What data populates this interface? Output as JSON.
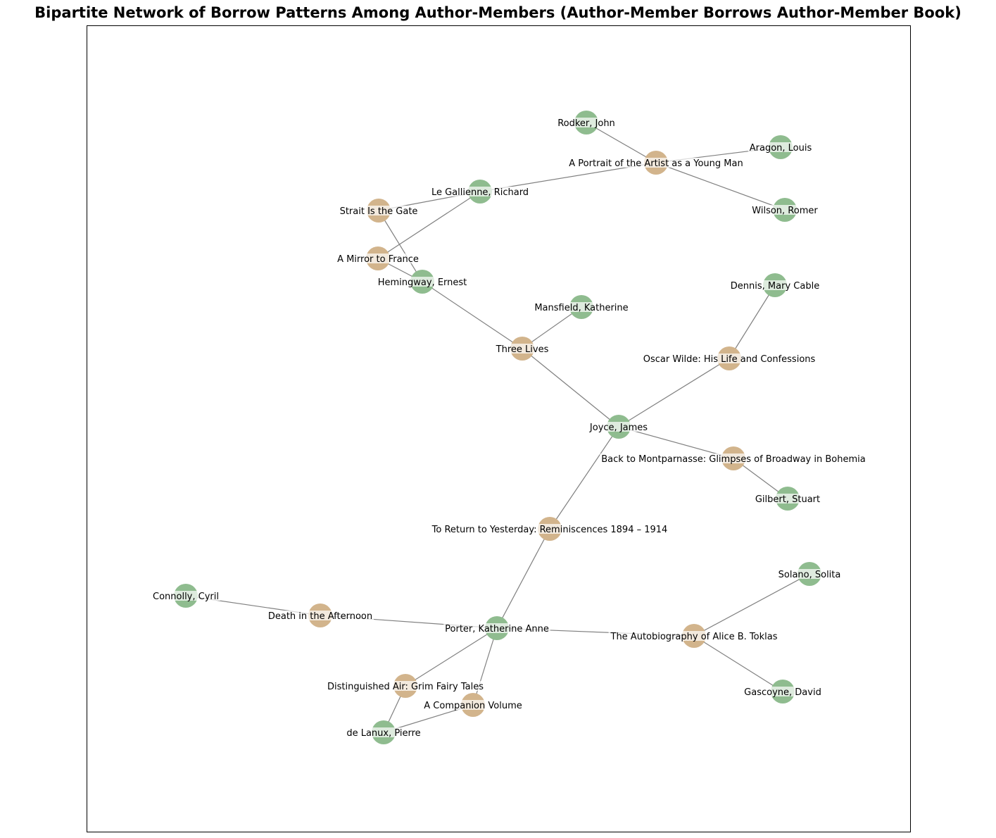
{
  "title": "Bipartite Network of Borrow Patterns Among Author-Members (Author-Member Borrows Author-Member Book)",
  "colors": {
    "member": "#8fbc8f",
    "book": "#d2b48c",
    "edge": "#808080",
    "label_band": "#ffffff"
  },
  "members": [
    "Rodker, John",
    "Aragon, Louis",
    "Wilson, Romer",
    "Le Gallienne, Richard",
    "Hemingway, Ernest",
    "Mansfield, Katherine",
    "Dennis, Mary Cable",
    "Joyce, James",
    "Gilbert, Stuart",
    "Solano, Solita",
    "Connolly, Cyril",
    "Porter, Katherine Anne",
    "Gascoyne, David",
    "de Lanux, Pierre"
  ],
  "books": [
    "A Portrait of the Artist as a Young Man",
    "Strait Is the Gate",
    "A Mirror to France",
    "Three Lives",
    "Oscar Wilde: His Life and Confessions",
    "Back to Montparnasse: Glimpses of Broadway in Bohemia",
    "To Return to Yesterday: Reminiscences 1894 – 1914",
    "Death in the Afternoon",
    "The Autobiography of Alice B. Toklas",
    "Distinguished Air: Grim Fairy Tales",
    "A Companion Volume"
  ],
  "edges": [
    [
      "Rodker, John",
      "A Portrait of the Artist as a Young Man"
    ],
    [
      "Aragon, Louis",
      "A Portrait of the Artist as a Young Man"
    ],
    [
      "Wilson, Romer",
      "A Portrait of the Artist as a Young Man"
    ],
    [
      "Le Gallienne, Richard",
      "A Portrait of the Artist as a Young Man"
    ],
    [
      "Le Gallienne, Richard",
      "Strait Is the Gate"
    ],
    [
      "Le Gallienne, Richard",
      "A Mirror to France"
    ],
    [
      "Hemingway, Ernest",
      "Strait Is the Gate"
    ],
    [
      "Hemingway, Ernest",
      "A Mirror to France"
    ],
    [
      "Hemingway, Ernest",
      "Three Lives"
    ],
    [
      "Mansfield, Katherine",
      "Three Lives"
    ],
    [
      "Joyce, James",
      "Three Lives"
    ],
    [
      "Joyce, James",
      "Oscar Wilde: His Life and Confessions"
    ],
    [
      "Dennis, Mary Cable",
      "Oscar Wilde: His Life and Confessions"
    ],
    [
      "Joyce, James",
      "Back to Montparnasse: Glimpses of Broadway in Bohemia"
    ],
    [
      "Gilbert, Stuart",
      "Back to Montparnasse: Glimpses of Broadway in Bohemia"
    ],
    [
      "Joyce, James",
      "To Return to Yesterday: Reminiscences 1894 – 1914"
    ],
    [
      "Porter, Katherine Anne",
      "To Return to Yesterday: Reminiscences 1894 – 1914"
    ],
    [
      "Connolly, Cyril",
      "Death in the Afternoon"
    ],
    [
      "Porter, Katherine Anne",
      "Death in the Afternoon"
    ],
    [
      "Porter, Katherine Anne",
      "The Autobiography of Alice B. Toklas"
    ],
    [
      "Solano, Solita",
      "The Autobiography of Alice B. Toklas"
    ],
    [
      "Gascoyne, David",
      "The Autobiography of Alice B. Toklas"
    ],
    [
      "Porter, Katherine Anne",
      "Distinguished Air: Grim Fairy Tales"
    ],
    [
      "Porter, Katherine Anne",
      "A Companion Volume"
    ],
    [
      "de Lanux, Pierre",
      "Distinguished Air: Grim Fairy Tales"
    ],
    [
      "de Lanux, Pierre",
      "A Companion Volume"
    ]
  ]
}
